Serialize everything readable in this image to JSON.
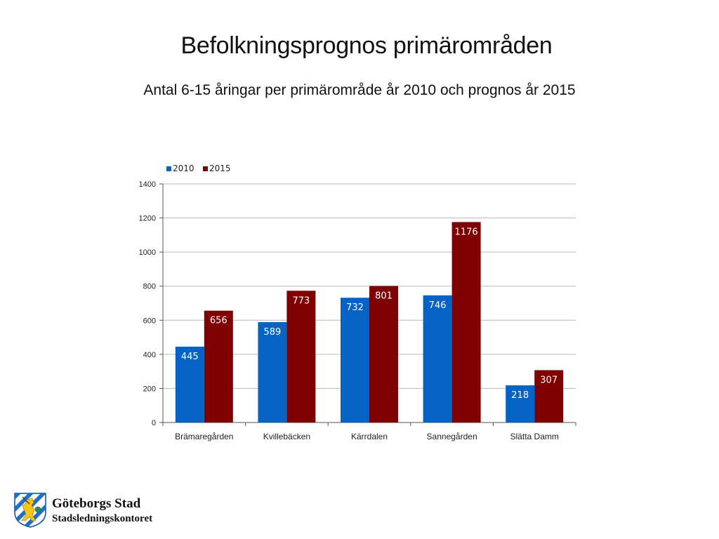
{
  "slide": {
    "title": "Befolkningsprognos primärområden",
    "subtitle": "Antal 6-15 åringar per primärområde år 2010 och prognos år 2015"
  },
  "footer": {
    "logo_icon": "coat-of-arms-lion-icon",
    "org_name": "Göteborgs Stad",
    "department": "Stadsledningskontoret"
  },
  "chart_data": {
    "type": "bar",
    "title": "",
    "xlabel": "",
    "ylabel": "",
    "categories": [
      "Brämaregården",
      "Kvillebäcken",
      "Kärrdalen",
      "Sannegården",
      "Slätta Damm"
    ],
    "series": [
      {
        "name": "2010",
        "color": "#0563C6",
        "values": [
          445,
          589,
          732,
          746,
          218
        ]
      },
      {
        "name": "2015",
        "color": "#7F0000",
        "values": [
          656,
          773,
          801,
          1176,
          307
        ]
      }
    ],
    "ylim": [
      0,
      1400
    ],
    "yticks": [
      0,
      200,
      400,
      600,
      800,
      1000,
      1200,
      1400
    ],
    "grid": true,
    "legend": "top-left",
    "data_labels": true
  }
}
